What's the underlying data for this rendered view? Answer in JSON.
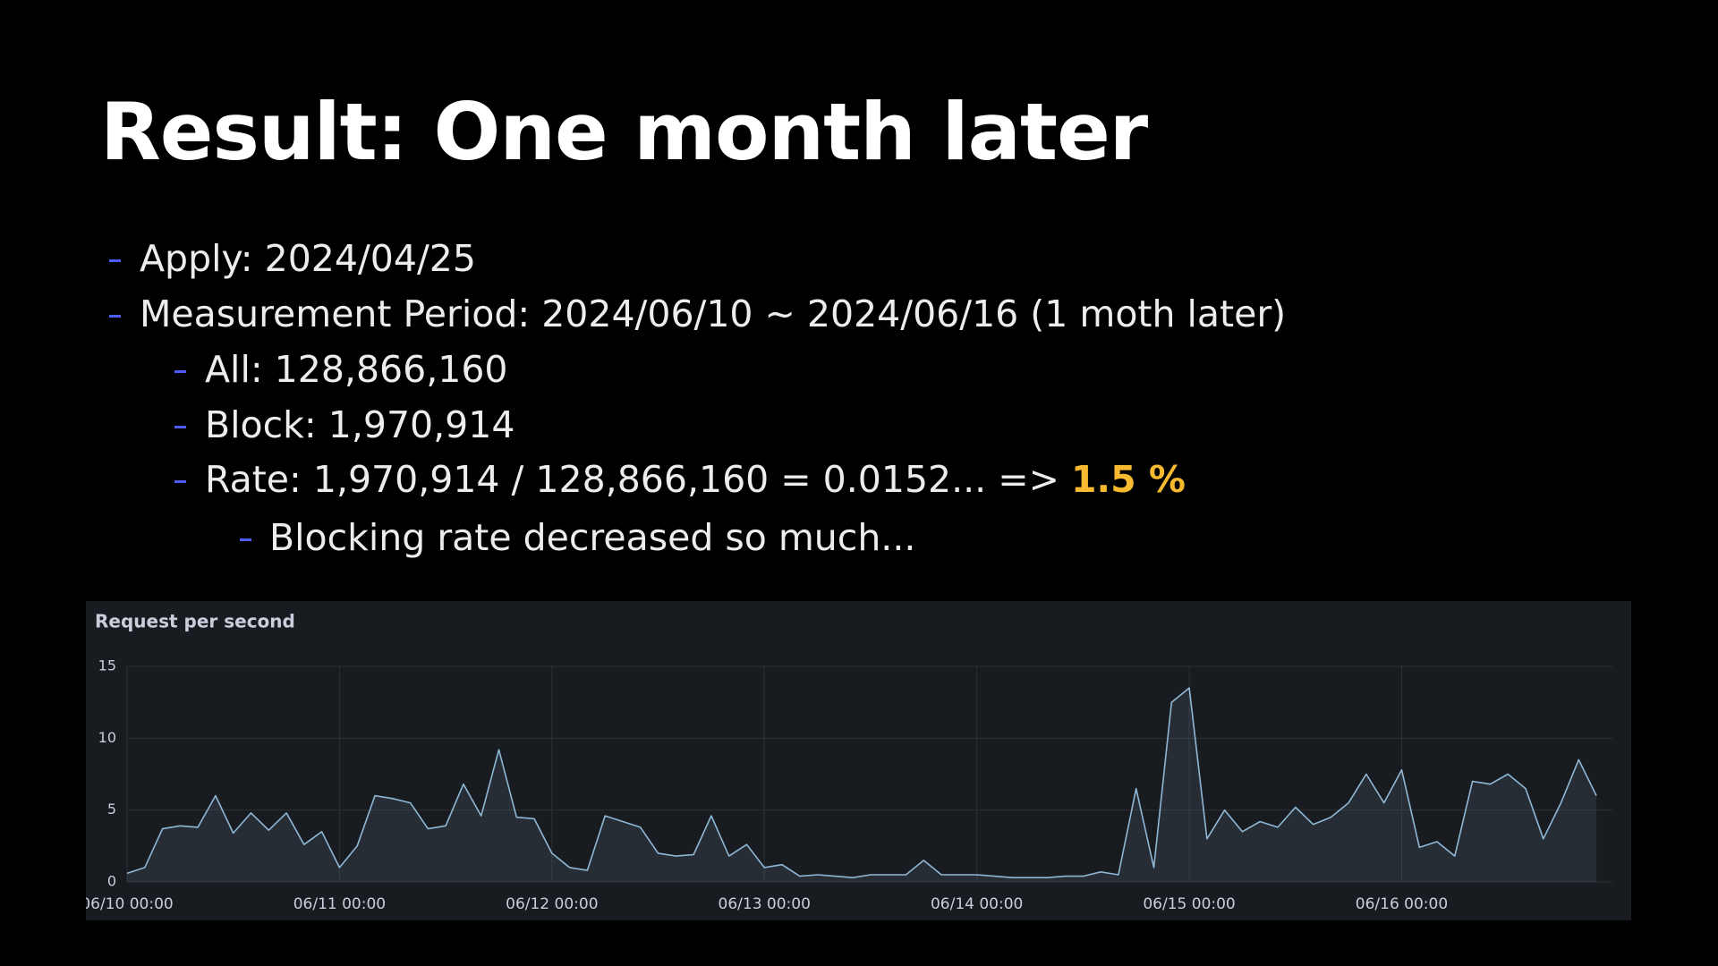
{
  "title": "Result: One month later",
  "bullets": [
    {
      "level": 1,
      "text": "Apply: 2024/04/25"
    },
    {
      "level": 1,
      "text": "Measurement Period: 2024/06/10 ~ 2024/06/16 (1 moth later)"
    },
    {
      "level": 2,
      "text": "All: 128,866,160"
    },
    {
      "level": 2,
      "text": "Block: 1,970,914"
    },
    {
      "level": 2,
      "text": "Rate: 1,970,914 / 128,866,160 = 0.0152... => ",
      "highlight": "1.5 %"
    },
    {
      "level": 3,
      "text": "Blocking rate decreased so much..."
    }
  ],
  "chart_data": {
    "type": "line",
    "title": "Request per second",
    "x": [
      0,
      2,
      4,
      6,
      8,
      10,
      12,
      14,
      16,
      18,
      20,
      22,
      24,
      26,
      28,
      30,
      32,
      34,
      36,
      38,
      40,
      42,
      44,
      46,
      48,
      50,
      52,
      54,
      56,
      58,
      60,
      62,
      64,
      66,
      68,
      70,
      72,
      74,
      76,
      78,
      80,
      82,
      84,
      86,
      88,
      90,
      92,
      94,
      96,
      98,
      100,
      102,
      104,
      106,
      108,
      110,
      112,
      114,
      116,
      118,
      120,
      122,
      124,
      126,
      128,
      130,
      132,
      134,
      136,
      138,
      140,
      142,
      144,
      146,
      148,
      150,
      152,
      154,
      156,
      158,
      160,
      162,
      164,
      166
    ],
    "series": [
      {
        "name": "Request per second",
        "color": "#8fb8d6",
        "values": [
          0.6,
          1.0,
          3.7,
          3.9,
          3.8,
          6.0,
          3.4,
          4.8,
          3.6,
          4.8,
          2.6,
          3.5,
          1.0,
          2.5,
          6.0,
          5.8,
          5.5,
          3.7,
          3.9,
          6.8,
          4.6,
          9.2,
          4.5,
          4.4,
          2.0,
          1.0,
          0.8,
          4.6,
          4.2,
          3.8,
          2.0,
          1.8,
          1.9,
          4.6,
          1.8,
          2.6,
          1.0,
          1.2,
          0.4,
          0.5,
          0.4,
          0.3,
          0.5,
          0.5,
          0.5,
          1.5,
          0.5,
          0.5,
          0.5,
          0.4,
          0.3,
          0.3,
          0.3,
          0.4,
          0.4,
          0.7,
          0.5,
          6.5,
          1.0,
          12.5,
          13.5,
          3.0,
          5.0,
          3.5,
          4.2,
          3.8,
          5.2,
          4.0,
          4.5,
          5.5,
          7.5,
          5.5,
          7.8,
          2.4,
          2.8,
          1.8,
          7.0,
          6.8,
          7.5,
          6.5,
          3.0,
          5.5,
          8.5,
          6.0
        ]
      }
    ],
    "xlim": [
      0,
      167
    ],
    "xticks": [
      {
        "value": 0,
        "label": "06/10 00:00"
      },
      {
        "value": 24,
        "label": "06/11 00:00"
      },
      {
        "value": 48,
        "label": "06/12 00:00"
      },
      {
        "value": 72,
        "label": "06/13 00:00"
      },
      {
        "value": 96,
        "label": "06/14 00:00"
      },
      {
        "value": 120,
        "label": "06/15 00:00"
      },
      {
        "value": 144,
        "label": "06/16 00:00"
      }
    ],
    "ylim": [
      0,
      15
    ],
    "yticks": [
      0,
      5,
      10,
      15
    ],
    "grid": true
  }
}
